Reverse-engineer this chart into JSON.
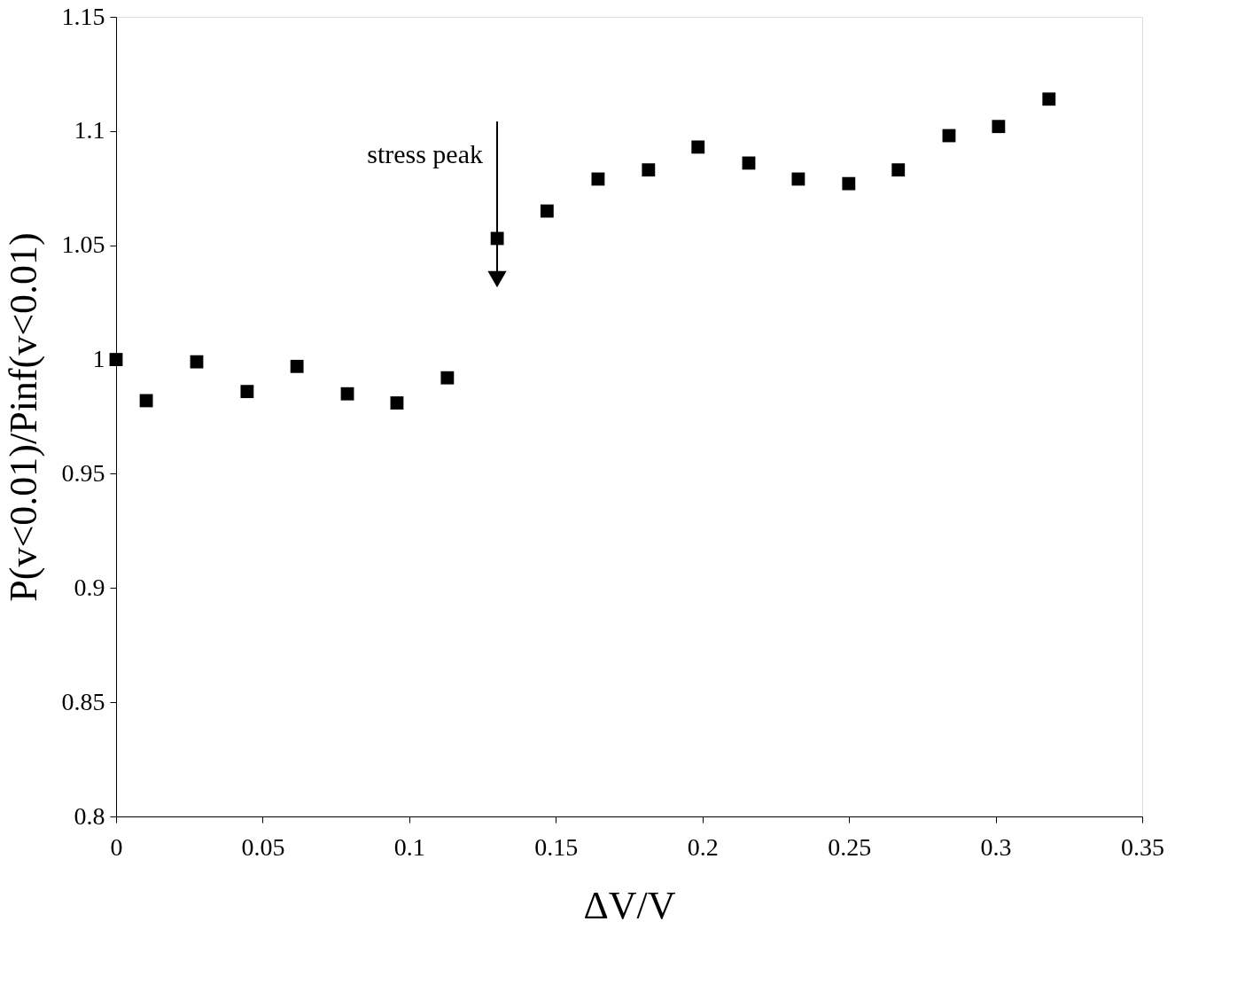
{
  "chart_data": {
    "type": "scatter",
    "xlabel": "ΔV/V",
    "ylabel": "P(v<0.01)/Pinf(v<0.01)",
    "x": [
      0,
      0.0103,
      0.0275,
      0.0447,
      0.0617,
      0.0789,
      0.0958,
      0.113,
      0.13,
      0.147,
      0.1644,
      0.1816,
      0.1985,
      0.2158,
      0.2327,
      0.2499,
      0.2668,
      0.2841,
      0.301,
      0.3182
    ],
    "series": [
      {
        "color": "#000000",
        "values": [
          1.0,
          0.982,
          0.999,
          0.986,
          0.997,
          0.985,
          0.981,
          0.992,
          1.053,
          1.065,
          1.079,
          1.083,
          1.093,
          1.086,
          1.079,
          1.077,
          1.083,
          1.098,
          1.102,
          1.114
        ]
      }
    ],
    "xlim": [
      0,
      0.35
    ],
    "xticks": [
      0,
      0.05,
      0.1,
      0.15,
      0.2,
      0.25,
      0.3,
      0.35
    ],
    "ylim": [
      0.8,
      1.15
    ],
    "yticks": [
      0.8,
      0.85,
      0.9,
      0.95,
      1,
      1.05,
      1.1,
      1.15
    ],
    "marker": "square",
    "grid": false,
    "annotations": [
      "stress peak"
    ]
  }
}
